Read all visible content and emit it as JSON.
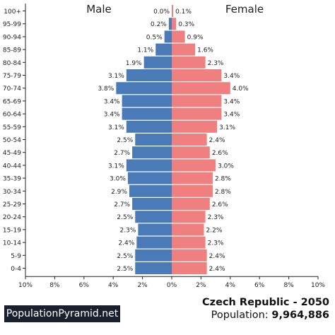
{
  "chart_data": {
    "type": "bar",
    "orientation": "horizontal-pyramid",
    "categories": [
      "100+",
      "95-99",
      "90-94",
      "85-89",
      "80-84",
      "75-79",
      "70-74",
      "65-69",
      "60-64",
      "55-59",
      "50-54",
      "45-49",
      "40-44",
      "35-39",
      "30-34",
      "25-29",
      "20-24",
      "15-19",
      "10-14",
      "5-9",
      "0-4"
    ],
    "series": [
      {
        "name": "Male",
        "color": "#4a7ab8",
        "values": [
          0.0,
          0.2,
          0.5,
          1.1,
          1.9,
          3.1,
          3.8,
          3.4,
          3.4,
          3.1,
          2.5,
          2.7,
          3.1,
          3.0,
          2.9,
          2.7,
          2.5,
          2.3,
          2.4,
          2.5,
          2.5
        ],
        "labels": [
          "0.0%",
          "0.2%",
          "0.5%",
          "1.1%",
          "1.9%",
          "3.1%",
          "3.8%",
          "3.4%",
          "3.4%",
          "3.1%",
          "2.5%",
          "2.7%",
          "3.1%",
          "3.0%",
          "2.9%",
          "2.7%",
          "2.5%",
          "2.3%",
          "2.4%",
          "2.5%",
          "2.5%"
        ]
      },
      {
        "name": "Female",
        "color": "#f08080",
        "values": [
          0.1,
          0.3,
          0.9,
          1.6,
          2.3,
          3.4,
          4.0,
          3.4,
          3.4,
          3.1,
          2.4,
          2.6,
          3.0,
          2.8,
          2.8,
          2.6,
          2.3,
          2.2,
          2.3,
          2.4,
          2.4
        ],
        "labels": [
          "0.1%",
          "0.3%",
          "0.9%",
          "1.6%",
          "2.3%",
          "3.4%",
          "4.0%",
          "3.4%",
          "3.4%",
          "3.1%",
          "2.4%",
          "2.6%",
          "3.0%",
          "2.8%",
          "2.8%",
          "2.6%",
          "2.3%",
          "2.2%",
          "2.3%",
          "2.4%",
          "2.4%"
        ]
      }
    ],
    "xlim": [
      -10,
      10
    ],
    "xticks": [
      -10,
      -8,
      -6,
      -4,
      -2,
      0,
      2,
      4,
      6,
      8,
      10
    ],
    "xtick_labels": [
      "10%",
      "8%",
      "6%",
      "4%",
      "2%",
      "0%",
      "2%",
      "4%",
      "6%",
      "8%",
      "10%"
    ],
    "legend": [
      "Male",
      "Female"
    ],
    "grid": false
  },
  "footer": {
    "brand": "PopulationPyramid.net",
    "country": "Czech Republic - 2050",
    "population_label": "Population: ",
    "population_value": "9,964,886"
  }
}
